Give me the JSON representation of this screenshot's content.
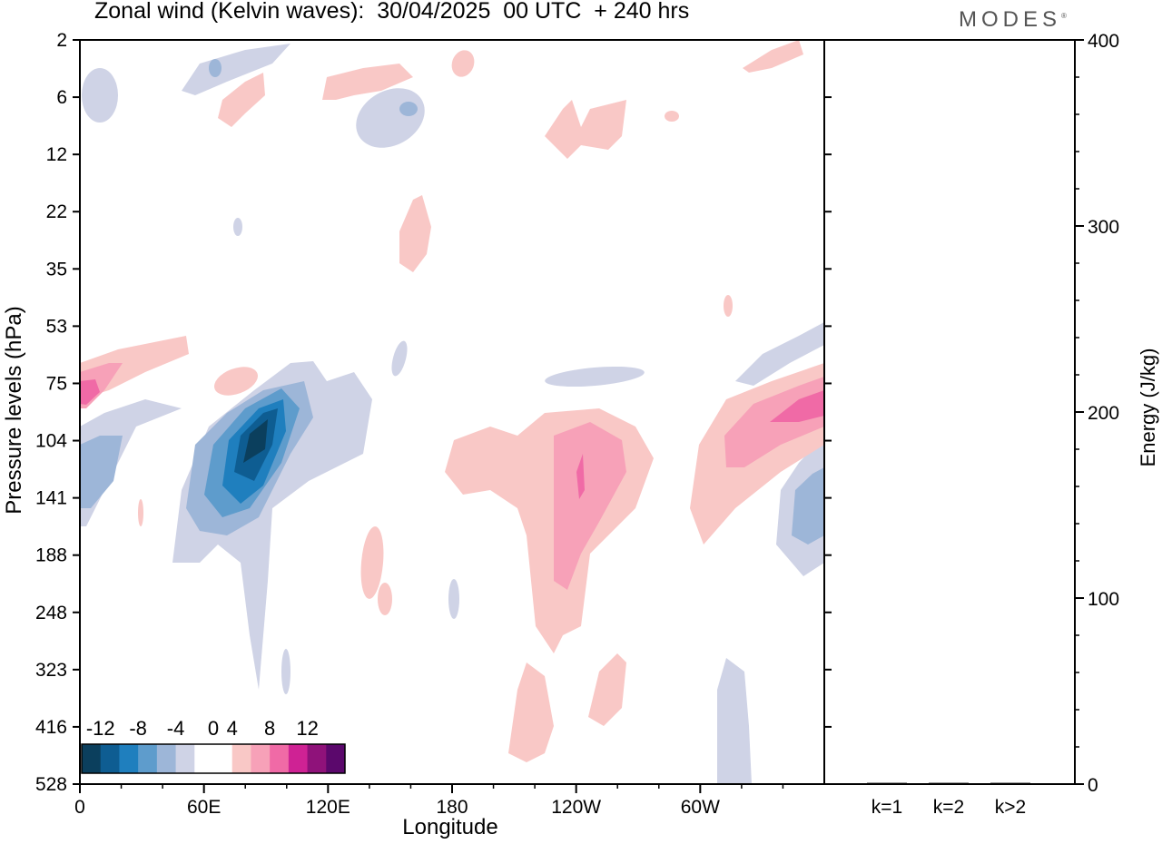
{
  "header": {
    "title": "Zonal wind (Kelvin waves):  30/04/2025  00 UTC  + 240 hrs",
    "brand": "MODES"
  },
  "colors": {
    "neg": [
      "#0b3f5d",
      "#0e5d92",
      "#1f7fbe",
      "#5e9ccc",
      "#9db6d8",
      "#cfd3e6"
    ],
    "pos": [
      "#f9c8c6",
      "#f7a1b8",
      "#f06aa6",
      "#cf2294",
      "#8f127a",
      "#5b086c"
    ]
  },
  "chart_data": [
    {
      "type": "heatmap",
      "title": "Zonal wind (Kelvin waves):  30/04/2025  00 UTC  + 240 hrs",
      "xlabel": "Longitude",
      "ylabel": "Pressure levels (hPa)",
      "x_ticks": [
        "0",
        "60E",
        "120E",
        "180",
        "120W",
        "60W"
      ],
      "x_tick_degrees": [
        0,
        60,
        120,
        180,
        240,
        300
      ],
      "xlim": [
        0,
        360
      ],
      "y_ticks": [
        "2",
        "6",
        "12",
        "22",
        "35",
        "53",
        "75",
        "104",
        "141",
        "188",
        "248",
        "323",
        "416",
        "528"
      ],
      "colorbar": {
        "labels": [
          "-12",
          "-8",
          "-4",
          "0",
          "4",
          "8",
          "12"
        ],
        "levels": [
          -14,
          -12,
          -10,
          -8,
          -6,
          -4,
          -2,
          2,
          4,
          6,
          8,
          10,
          12,
          14
        ]
      },
      "features": [
        {
          "lon": 80,
          "level_index": 7.6,
          "value": -11
        },
        {
          "lon": 60,
          "level_index": 8.5,
          "value": -7
        },
        {
          "lon": 8,
          "level_index": 7.6,
          "value": -6
        },
        {
          "lon": 160,
          "level_index": 2.8,
          "value": 3
        },
        {
          "lon": 240,
          "level_index": 8.2,
          "value": 7
        },
        {
          "lon": 340,
          "level_index": 6.3,
          "value": 8
        },
        {
          "lon": 352,
          "level_index": 8.6,
          "value": -6
        },
        {
          "lon": 8,
          "level_index": 6.0,
          "value": 9
        },
        {
          "lon": 320,
          "level_index": 11.8,
          "value": -3
        }
      ]
    },
    {
      "type": "bar",
      "categories": [
        "k=1",
        "k=2",
        "k>2"
      ],
      "values": [
        0.4,
        0.2,
        0.3
      ],
      "ylabel": "Energy (J/kg)",
      "ylim": [
        0,
        400
      ],
      "y_ticks": [
        "0",
        "100",
        "200",
        "300",
        "400"
      ]
    }
  ]
}
